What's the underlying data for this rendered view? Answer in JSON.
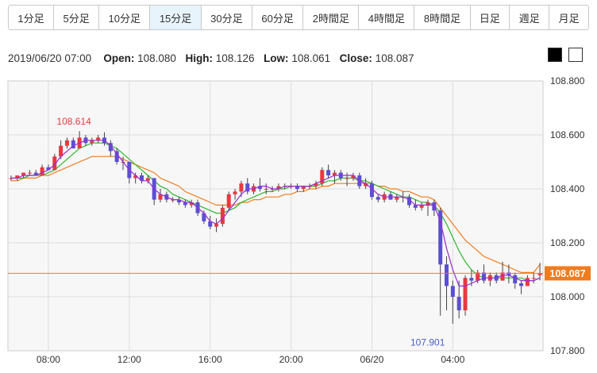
{
  "tabs": [
    {
      "label": "1分足",
      "active": false
    },
    {
      "label": "5分足",
      "active": false
    },
    {
      "label": "10分足",
      "active": false
    },
    {
      "label": "15分足",
      "active": true
    },
    {
      "label": "30分足",
      "active": false
    },
    {
      "label": "60分足",
      "active": false
    },
    {
      "label": "2時間足",
      "active": false
    },
    {
      "label": "4時間足",
      "active": false
    },
    {
      "label": "8時間足",
      "active": false
    },
    {
      "label": "日足",
      "active": false
    },
    {
      "label": "週足",
      "active": false
    },
    {
      "label": "月足",
      "active": false
    }
  ],
  "ohlc_info": {
    "datetime": "2019/06/20 07:00",
    "open_label": "Open:",
    "open": "108.080",
    "high_label": "High:",
    "high": "108.126",
    "low_label": "Low:",
    "low": "108.061",
    "close_label": "Close:",
    "close": "108.087"
  },
  "colors": {
    "up": "#e8393f",
    "down": "#5b4fd4",
    "ma_short": "#9a2bd6",
    "ma_mid": "#2fb62f",
    "ma_long": "#f07c1e",
    "current_price": "#f07c1e",
    "high_label": "#e8393f",
    "low_label": "#4b5fc4"
  },
  "chart_data": {
    "type": "candlestick",
    "ylim": [
      107.8,
      108.8
    ],
    "y_ticks": [
      "108.800",
      "108.600",
      "108.400",
      "108.200",
      "108.000",
      "107.800"
    ],
    "x_ticks": [
      {
        "index": 6,
        "label": "08:00"
      },
      {
        "index": 19,
        "label": "12:00"
      },
      {
        "index": 32,
        "label": "16:00"
      },
      {
        "index": 45,
        "label": "20:00"
      },
      {
        "index": 58,
        "label": "06/20"
      },
      {
        "index": 71,
        "label": "04:00"
      }
    ],
    "high_marker": {
      "index": 11,
      "value": 108.614,
      "label": "108.614"
    },
    "low_marker": {
      "index": 69,
      "value": 107.901,
      "label": "107.901"
    },
    "current_price": {
      "value": 108.087,
      "label": "108.087"
    },
    "candles": [
      [
        108.44,
        108.45,
        108.43,
        108.44
      ],
      [
        108.44,
        108.45,
        108.43,
        108.45
      ],
      [
        108.45,
        108.46,
        108.44,
        108.46
      ],
      [
        108.46,
        108.47,
        108.45,
        108.46
      ],
      [
        108.46,
        108.47,
        108.45,
        108.45
      ],
      [
        108.45,
        108.49,
        108.45,
        108.48
      ],
      [
        108.48,
        108.49,
        108.47,
        108.47
      ],
      [
        108.47,
        108.53,
        108.47,
        108.52
      ],
      [
        108.52,
        108.58,
        108.51,
        108.56
      ],
      [
        108.56,
        108.59,
        108.55,
        108.58
      ],
      [
        108.58,
        108.59,
        108.55,
        108.55
      ],
      [
        108.55,
        108.614,
        108.55,
        108.59
      ],
      [
        108.59,
        108.6,
        108.56,
        108.57
      ],
      [
        108.57,
        108.59,
        108.56,
        108.58
      ],
      [
        108.58,
        108.6,
        108.57,
        108.59
      ],
      [
        108.59,
        108.61,
        108.56,
        108.57
      ],
      [
        108.57,
        108.58,
        108.52,
        108.54
      ],
      [
        108.54,
        108.55,
        108.49,
        108.5
      ],
      [
        108.5,
        108.52,
        108.47,
        108.5
      ],
      [
        108.5,
        108.5,
        108.42,
        108.44
      ],
      [
        108.44,
        108.46,
        108.42,
        108.45
      ],
      [
        108.45,
        108.46,
        108.42,
        108.43
      ],
      [
        108.43,
        108.45,
        108.42,
        108.44
      ],
      [
        108.44,
        108.44,
        108.34,
        108.36
      ],
      [
        108.36,
        108.4,
        108.35,
        108.38
      ],
      [
        108.38,
        108.39,
        108.35,
        108.36
      ],
      [
        108.36,
        108.37,
        108.35,
        108.36
      ],
      [
        108.36,
        108.37,
        108.34,
        108.35
      ],
      [
        108.35,
        108.36,
        108.33,
        108.34
      ],
      [
        108.34,
        108.36,
        108.33,
        108.35
      ],
      [
        108.35,
        108.36,
        108.3,
        108.31
      ],
      [
        108.31,
        108.32,
        108.27,
        108.28
      ],
      [
        108.28,
        108.3,
        108.25,
        108.26
      ],
      [
        108.26,
        108.29,
        108.24,
        108.27
      ],
      [
        108.27,
        108.34,
        108.26,
        108.33
      ],
      [
        108.33,
        108.39,
        108.32,
        108.38
      ],
      [
        108.38,
        108.4,
        108.36,
        108.39
      ],
      [
        108.39,
        108.43,
        108.37,
        108.42
      ],
      [
        108.42,
        108.44,
        108.38,
        108.39
      ],
      [
        108.39,
        108.42,
        108.38,
        108.41
      ],
      [
        108.41,
        108.44,
        108.39,
        108.4
      ],
      [
        108.4,
        108.42,
        108.38,
        108.4
      ],
      [
        108.4,
        108.41,
        108.39,
        108.4
      ],
      [
        108.4,
        108.42,
        108.39,
        108.41
      ],
      [
        108.41,
        108.42,
        108.4,
        108.41
      ],
      [
        108.41,
        108.42,
        108.4,
        108.41
      ],
      [
        108.41,
        108.42,
        108.39,
        108.4
      ],
      [
        108.4,
        108.41,
        108.39,
        108.41
      ],
      [
        108.41,
        108.42,
        108.4,
        108.41
      ],
      [
        108.41,
        108.43,
        108.4,
        108.42
      ],
      [
        108.42,
        108.48,
        108.41,
        108.47
      ],
      [
        108.47,
        108.49,
        108.44,
        108.45
      ],
      [
        108.45,
        108.47,
        108.42,
        108.46
      ],
      [
        108.46,
        108.47,
        108.43,
        108.44
      ],
      [
        108.44,
        108.46,
        108.41,
        108.44
      ],
      [
        108.44,
        108.46,
        108.43,
        108.45
      ],
      [
        108.45,
        108.46,
        108.4,
        108.41
      ],
      [
        108.41,
        108.44,
        108.4,
        108.42
      ],
      [
        108.42,
        108.43,
        108.36,
        108.37
      ],
      [
        108.37,
        108.38,
        108.35,
        108.36
      ],
      [
        108.36,
        108.39,
        108.35,
        108.38
      ],
      [
        108.38,
        108.39,
        108.36,
        108.36
      ],
      [
        108.36,
        108.38,
        108.35,
        108.37
      ],
      [
        108.37,
        108.39,
        108.35,
        108.37
      ],
      [
        108.37,
        108.38,
        108.33,
        108.34
      ],
      [
        108.34,
        108.36,
        108.32,
        108.33
      ],
      [
        108.33,
        108.35,
        108.32,
        108.34
      ],
      [
        108.34,
        108.36,
        108.3,
        108.35
      ],
      [
        108.35,
        108.36,
        108.3,
        108.32
      ],
      [
        108.32,
        108.33,
        107.93,
        108.12
      ],
      [
        108.12,
        108.15,
        107.95,
        108.04
      ],
      [
        108.04,
        108.06,
        107.9,
        108.0
      ],
      [
        108.0,
        108.06,
        107.92,
        107.95
      ],
      [
        107.95,
        108.08,
        107.93,
        108.07
      ],
      [
        108.07,
        108.1,
        108.04,
        108.06
      ],
      [
        108.06,
        108.1,
        108.05,
        108.09
      ],
      [
        108.09,
        108.12,
        108.05,
        108.06
      ],
      [
        108.06,
        108.09,
        108.04,
        108.08
      ],
      [
        108.08,
        108.09,
        108.05,
        108.06
      ],
      [
        108.06,
        108.13,
        108.06,
        108.09
      ],
      [
        108.09,
        108.12,
        108.05,
        108.08
      ],
      [
        108.08,
        108.09,
        108.03,
        108.05
      ],
      [
        108.05,
        108.06,
        108.01,
        108.04
      ],
      [
        108.04,
        108.08,
        108.04,
        108.07
      ],
      [
        108.07,
        108.09,
        108.05,
        108.07
      ],
      [
        108.08,
        108.126,
        108.061,
        108.087
      ]
    ],
    "ma_short": [
      108.44,
      108.44,
      108.45,
      108.45,
      108.45,
      108.46,
      108.47,
      108.49,
      108.52,
      108.54,
      108.56,
      108.57,
      108.58,
      108.58,
      108.58,
      108.58,
      108.56,
      108.53,
      108.5,
      108.47,
      108.45,
      108.43,
      108.43,
      108.4,
      108.38,
      108.37,
      108.36,
      108.36,
      108.35,
      108.35,
      108.33,
      108.31,
      108.28,
      108.27,
      108.29,
      108.32,
      108.35,
      108.38,
      108.4,
      108.4,
      108.41,
      108.41,
      108.4,
      108.4,
      108.41,
      108.41,
      108.41,
      108.41,
      108.41,
      108.42,
      108.43,
      108.44,
      108.45,
      108.45,
      108.45,
      108.45,
      108.43,
      108.42,
      108.4,
      108.38,
      108.37,
      108.37,
      108.37,
      108.37,
      108.36,
      108.34,
      108.34,
      108.34,
      108.34,
      108.28,
      108.18,
      108.1,
      108.04,
      108.04,
      108.05,
      108.06,
      108.07,
      108.07,
      108.07,
      108.08,
      108.08,
      108.07,
      108.06,
      108.06,
      108.06,
      108.07
    ],
    "ma_mid": [
      108.44,
      108.44,
      108.44,
      108.45,
      108.45,
      108.45,
      108.46,
      108.47,
      108.49,
      108.51,
      108.53,
      108.55,
      108.56,
      108.57,
      108.57,
      108.57,
      108.56,
      108.55,
      108.53,
      108.51,
      108.49,
      108.47,
      108.45,
      108.43,
      108.41,
      108.4,
      108.38,
      108.37,
      108.36,
      108.35,
      108.34,
      108.33,
      108.32,
      108.31,
      108.31,
      108.32,
      108.33,
      108.35,
      108.36,
      108.37,
      108.38,
      108.39,
      108.39,
      108.4,
      108.4,
      108.41,
      108.41,
      108.41,
      108.41,
      108.41,
      108.42,
      108.43,
      108.43,
      108.44,
      108.44,
      108.44,
      108.43,
      108.43,
      108.42,
      108.41,
      108.4,
      108.39,
      108.38,
      108.37,
      108.37,
      108.36,
      108.35,
      108.35,
      108.34,
      108.31,
      108.27,
      108.22,
      108.17,
      108.13,
      108.1,
      108.08,
      108.07,
      108.07,
      108.07,
      108.07,
      108.07,
      108.07,
      108.07,
      108.06,
      108.06,
      108.07
    ],
    "ma_long": [
      108.43,
      108.43,
      108.44,
      108.44,
      108.44,
      108.45,
      108.45,
      108.46,
      108.47,
      108.48,
      108.49,
      108.5,
      108.51,
      108.52,
      108.52,
      108.52,
      108.52,
      108.52,
      108.51,
      108.5,
      108.49,
      108.48,
      108.47,
      108.46,
      108.44,
      108.43,
      108.42,
      108.41,
      108.39,
      108.38,
      108.37,
      108.36,
      108.35,
      108.34,
      108.34,
      108.34,
      108.34,
      108.35,
      108.35,
      108.36,
      108.36,
      108.37,
      108.37,
      108.37,
      108.38,
      108.38,
      108.39,
      108.39,
      108.4,
      108.4,
      108.41,
      108.41,
      108.42,
      108.42,
      108.42,
      108.42,
      108.42,
      108.42,
      108.42,
      108.41,
      108.41,
      108.4,
      108.4,
      108.39,
      108.39,
      108.38,
      108.37,
      108.37,
      108.36,
      108.33,
      108.3,
      108.27,
      108.24,
      108.21,
      108.19,
      108.17,
      108.15,
      108.14,
      108.13,
      108.12,
      108.11,
      108.1,
      108.09,
      108.09,
      108.09,
      108.12
    ]
  }
}
